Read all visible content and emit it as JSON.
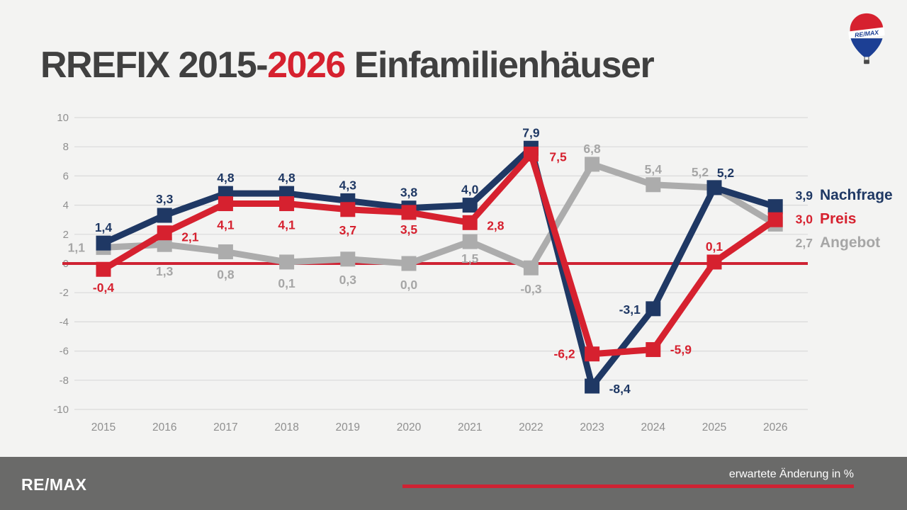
{
  "title": {
    "prefix": "RREFIX 2015-",
    "highlight": "2026",
    "suffix": " Einfamilienhäuser"
  },
  "logo": {
    "label": "RE/MAX"
  },
  "footer": {
    "brand": "RE/MAX",
    "caption": "erwartete Änderung in %"
  },
  "colors": {
    "navy": "#1f3864",
    "red": "#d6212f",
    "gray": "#acacac",
    "gray_label": "#a6a6a6",
    "grid": "#dadada",
    "axis_text": "#8f8f8f",
    "background": "#f3f3f2",
    "footer_bg": "#6a6a69",
    "title_dark": "#404040",
    "zero_line": "#cf2233",
    "balloon_blue": "#1c3f94"
  },
  "chart_data": {
    "type": "line",
    "categories": [
      "2015",
      "2016",
      "2017",
      "2018",
      "2019",
      "2020",
      "2021",
      "2022",
      "2023",
      "2024",
      "2025",
      "2026"
    ],
    "series": [
      {
        "name": "Nachfrage",
        "color": "#1f3864",
        "values": [
          1.4,
          3.3,
          4.8,
          4.8,
          4.3,
          3.8,
          4.0,
          7.9,
          -8.4,
          -3.1,
          5.2,
          3.9
        ],
        "label_offsets": [
          [
            0,
            -16,
            "m"
          ],
          [
            0,
            -17,
            "m"
          ],
          [
            0,
            -16,
            "m"
          ],
          [
            0,
            -16,
            "m"
          ],
          [
            0,
            -16,
            "m"
          ],
          [
            0,
            -16,
            "m"
          ],
          [
            0,
            -16,
            "m"
          ],
          [
            0,
            -16,
            "m"
          ],
          [
            24,
            10,
            "s"
          ],
          [
            -18,
            7,
            "e"
          ],
          [
            16,
            -15,
            "m"
          ],
          null
        ]
      },
      {
        "name": "Preis",
        "color": "#d6212f",
        "values": [
          -0.4,
          2.1,
          4.1,
          4.1,
          3.7,
          3.5,
          2.8,
          7.5,
          -6.2,
          -5.9,
          0.1,
          3.0
        ],
        "label_offsets": [
          [
            0,
            32,
            "m"
          ],
          [
            24,
            12,
            "s"
          ],
          [
            0,
            36,
            "m"
          ],
          [
            0,
            36,
            "m"
          ],
          [
            0,
            35,
            "m"
          ],
          [
            0,
            30,
            "m"
          ],
          [
            24,
            10,
            "s"
          ],
          [
            26,
            10,
            "s"
          ],
          [
            -24,
            6,
            "e"
          ],
          [
            24,
            6,
            "s"
          ],
          [
            0,
            -16,
            "m"
          ],
          null
        ]
      },
      {
        "name": "Angebot",
        "color": "#acacac",
        "label_color": "#a6a6a6",
        "values": [
          1.1,
          1.3,
          0.8,
          0.1,
          0.3,
          0.0,
          1.5,
          -0.3,
          6.8,
          5.4,
          5.2,
          2.7
        ],
        "label_offsets": [
          [
            -26,
            6,
            "e"
          ],
          [
            0,
            44,
            "m"
          ],
          [
            0,
            38,
            "m"
          ],
          [
            0,
            36,
            "m"
          ],
          [
            0,
            35,
            "m"
          ],
          [
            0,
            36,
            "m"
          ],
          [
            0,
            30,
            "m"
          ],
          [
            0,
            36,
            "m"
          ],
          [
            0,
            -16,
            "m"
          ],
          [
            0,
            -16,
            "m"
          ],
          [
            -20,
            -16,
            "m"
          ],
          null
        ]
      }
    ],
    "ylim": [
      -10,
      10
    ],
    "ytick_step": 2,
    "grid": true,
    "zero_line": true,
    "legend_position": "right",
    "decimal_separator": ","
  }
}
